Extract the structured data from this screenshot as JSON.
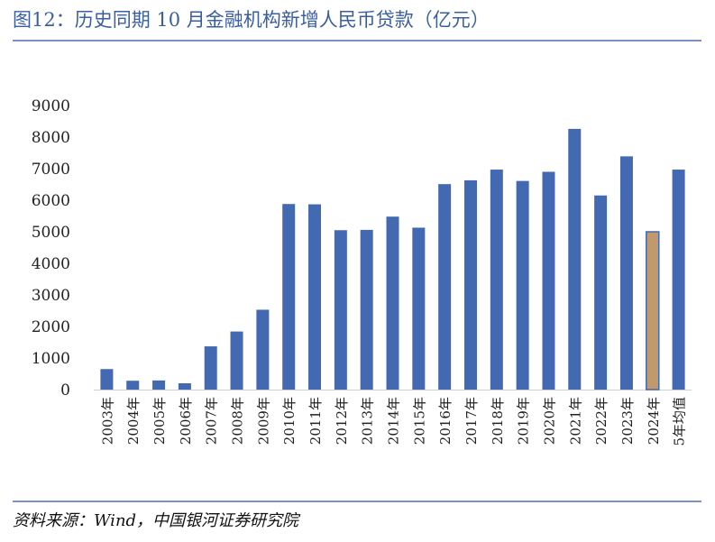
{
  "figure": {
    "title": "图12：历史同期 10 月金融机构新增人民币贷款（亿元）",
    "source": "资料来源：Wind，中国银河证券研究院"
  },
  "colors": {
    "title": "#3a5ea4",
    "rule": "#7a93c2",
    "bar": "#4469b3",
    "bar_highlight": "#c09a6b",
    "axis_text": "#222222",
    "axis_line": "#d0d0d0"
  },
  "chart_data": {
    "type": "bar",
    "categories": [
      "2003年",
      "2004年",
      "2005年",
      "2006年",
      "2007年",
      "2008年",
      "2009年",
      "2010年",
      "2011年",
      "2012年",
      "2013年",
      "2014年",
      "2015年",
      "2016年",
      "2017年",
      "2018年",
      "2019年",
      "2020年",
      "2021年",
      "2022年",
      "2023年",
      "2024年",
      "5年均值"
    ],
    "values": [
      650,
      280,
      290,
      200,
      1370,
      1840,
      2530,
      5880,
      5870,
      5050,
      5060,
      5480,
      5130,
      6510,
      6630,
      6970,
      6610,
      6900,
      8260,
      6150,
      7390,
      5000,
      6970
    ],
    "highlight_index": 21,
    "ylim": [
      0,
      9000
    ],
    "yticks": [
      0,
      1000,
      2000,
      3000,
      4000,
      5000,
      6000,
      7000,
      8000,
      9000
    ],
    "xlabel": "",
    "ylabel": "",
    "grid": false,
    "legend": "none"
  }
}
